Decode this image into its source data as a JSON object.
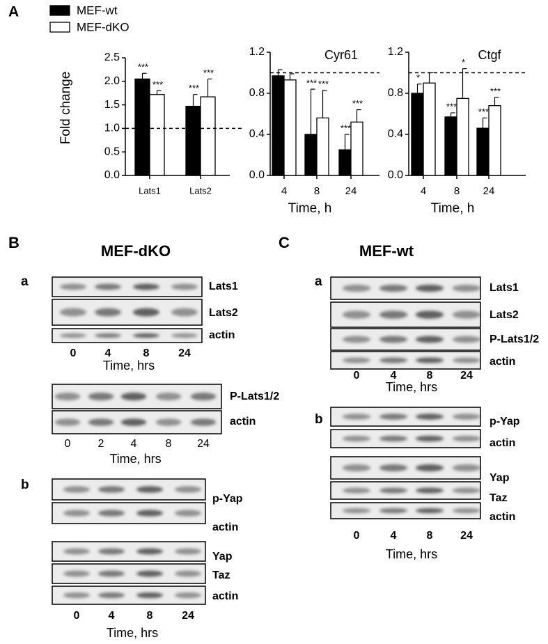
{
  "panel_a": {
    "label": "A"
  },
  "chart_data": [
    {
      "type": "bar",
      "ylabel": "Fold change",
      "categories": [
        "Lats1",
        "Lats2"
      ],
      "series": [
        {
          "name": "MEF-wt",
          "color": "#000000",
          "values": [
            2.05,
            1.47
          ],
          "errors": [
            0.12,
            0.25
          ],
          "significance": [
            "***",
            "***"
          ]
        },
        {
          "name": "MEF-dKO",
          "color": "#ffffff",
          "values": [
            1.72,
            1.67
          ],
          "errors": [
            0.08,
            0.38
          ],
          "significance": [
            "***",
            "***"
          ]
        }
      ],
      "ylim": [
        0,
        2.5
      ],
      "yticks": [
        {
          "value": 0,
          "label": "0.0"
        },
        0.5,
        {
          "value": 1,
          "label": "1.0"
        },
        1.5,
        {
          "value": 2,
          "label": "2.0"
        },
        2.5
      ],
      "reference_line": 1,
      "legend": true
    },
    {
      "type": "bar",
      "title": "Cyr61",
      "xlabel": "Time, h",
      "categories": [
        "4",
        "8",
        "24"
      ],
      "series": [
        {
          "color": "#000000",
          "values": [
            0.97,
            0.4,
            0.25
          ],
          "errors": [
            0.06,
            0.44,
            0.15
          ],
          "significance": [
            null,
            "***",
            "***"
          ]
        },
        {
          "color": "#ffffff",
          "values": [
            0.93,
            0.56,
            0.52
          ],
          "errors": [
            0.06,
            0.27,
            0.12
          ],
          "significance": [
            null,
            "***",
            "***"
          ]
        }
      ],
      "ylim": [
        0,
        1.2
      ],
      "yticks": [
        {
          "value": 0,
          "label": "0.0"
        },
        0.4,
        0.8,
        1.2
      ],
      "reference_line": 1
    },
    {
      "type": "bar",
      "title": "Ctgf",
      "xlabel": "Time, h",
      "categories": [
        "4",
        "8",
        "24"
      ],
      "series": [
        {
          "color": "#000000",
          "values": [
            0.8,
            0.57,
            0.46
          ],
          "errors": [
            0.09,
            0.04,
            0.1
          ],
          "significance": [
            "*",
            "***",
            "***"
          ]
        },
        {
          "color": "#ffffff",
          "values": [
            0.9,
            0.75,
            0.68
          ],
          "errors": [
            0.1,
            0.29,
            0.08
          ],
          "significance": [
            null,
            "*",
            "***"
          ]
        }
      ],
      "ylim": [
        0,
        1.2
      ],
      "yticks": [
        {
          "value": 0,
          "label": "0.0"
        },
        0.4,
        0.8,
        1.2
      ],
      "reference_line": 1
    }
  ],
  "panels": [
    {
      "label": "B",
      "title": "MEF-dKO",
      "subpanels": [
        {
          "label": "a",
          "blots": [
            {
              "rows": [
                "Lats1",
                "Lats2",
                "actin"
              ],
              "times": [
                "0",
                "4",
                "8",
                "24"
              ],
              "time_label": "Time, hrs"
            },
            {
              "rows": [
                "P-Lats1/2",
                "actin"
              ],
              "times": [
                "0",
                "2",
                "4",
                "8",
                "24"
              ],
              "time_label": "Time, hrs"
            }
          ]
        },
        {
          "label": "b",
          "blots": [
            {
              "rows": [
                "p-Yap",
                "actin"
              ]
            },
            {
              "rows": [
                "Yap",
                "Taz",
                "actin"
              ],
              "times": [
                "0",
                "4",
                "8",
                "24"
              ],
              "time_label": "Time, hrs"
            }
          ]
        }
      ]
    },
    {
      "label": "C",
      "title": "MEF-wt",
      "subpanels": [
        {
          "label": "a",
          "blots": [
            {
              "rows": [
                "Lats1",
                "Lats2",
                "P-Lats1/2",
                "actin"
              ],
              "times": [
                "0",
                "4",
                "8",
                "24"
              ],
              "time_label": "Time, hrs"
            }
          ]
        },
        {
          "label": "b",
          "blots": [
            {
              "rows": [
                "p-Yap",
                "actin"
              ]
            },
            {
              "rows": [
                "Yap",
                "Taz",
                "actin"
              ],
              "times": [
                "0",
                "4",
                "8",
                "24"
              ],
              "time_label": "Time, hrs"
            }
          ]
        }
      ]
    }
  ]
}
